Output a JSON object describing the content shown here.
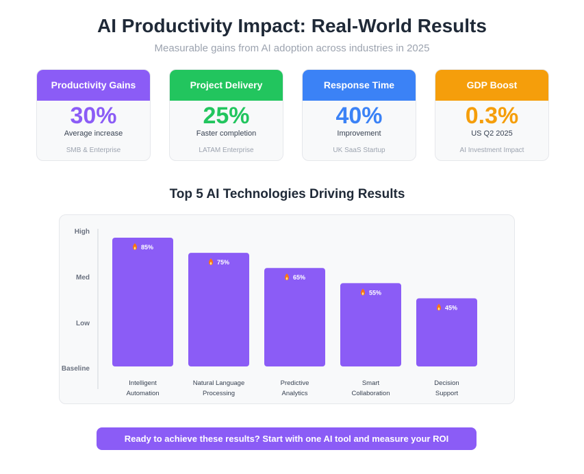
{
  "header": {
    "title": "AI Productivity Impact: Real-World Results",
    "subtitle": "Measurable gains from AI adoption across industries in 2025"
  },
  "cards": [
    {
      "label": "Productivity Gains",
      "value": "30%",
      "caption": "Average increase",
      "source": "SMB & Enterprise",
      "color": "#8b5cf6"
    },
    {
      "label": "Project Delivery",
      "value": "25%",
      "caption": "Faster completion",
      "source": "LATAM Enterprise",
      "color": "#22c55e"
    },
    {
      "label": "Response Time",
      "value": "40%",
      "caption": "Improvement",
      "source": "UK SaaS Startup",
      "color": "#3b82f6"
    },
    {
      "label": "GDP Boost",
      "value": "0.3%",
      "caption": "US Q2 2025",
      "source": "AI Investment Impact",
      "color": "#f59e0b"
    }
  ],
  "section_title": "Top 5 AI Technologies Driving Results",
  "chart_data": {
    "type": "bar",
    "title": "Top 5 AI Technologies Driving Results",
    "categories": [
      [
        "Intelligent",
        "Automation"
      ],
      [
        "Natural Language",
        "Processing"
      ],
      [
        "Predictive",
        "Analytics"
      ],
      [
        "Smart",
        "Collaboration"
      ],
      [
        "Decision",
        "Support"
      ]
    ],
    "values": [
      85,
      75,
      65,
      55,
      45
    ],
    "value_labels": [
      "85%",
      "75%",
      "65%",
      "55%",
      "45%"
    ],
    "y_tick_labels": [
      "High",
      "Med",
      "Low",
      "Baseline"
    ],
    "bar_color": "#8b5cf6",
    "label_icon": "fire-icon",
    "grid": false,
    "legend": "none"
  },
  "cta": {
    "label": "Ready to achieve these results? Start with one AI tool and measure your ROI"
  }
}
